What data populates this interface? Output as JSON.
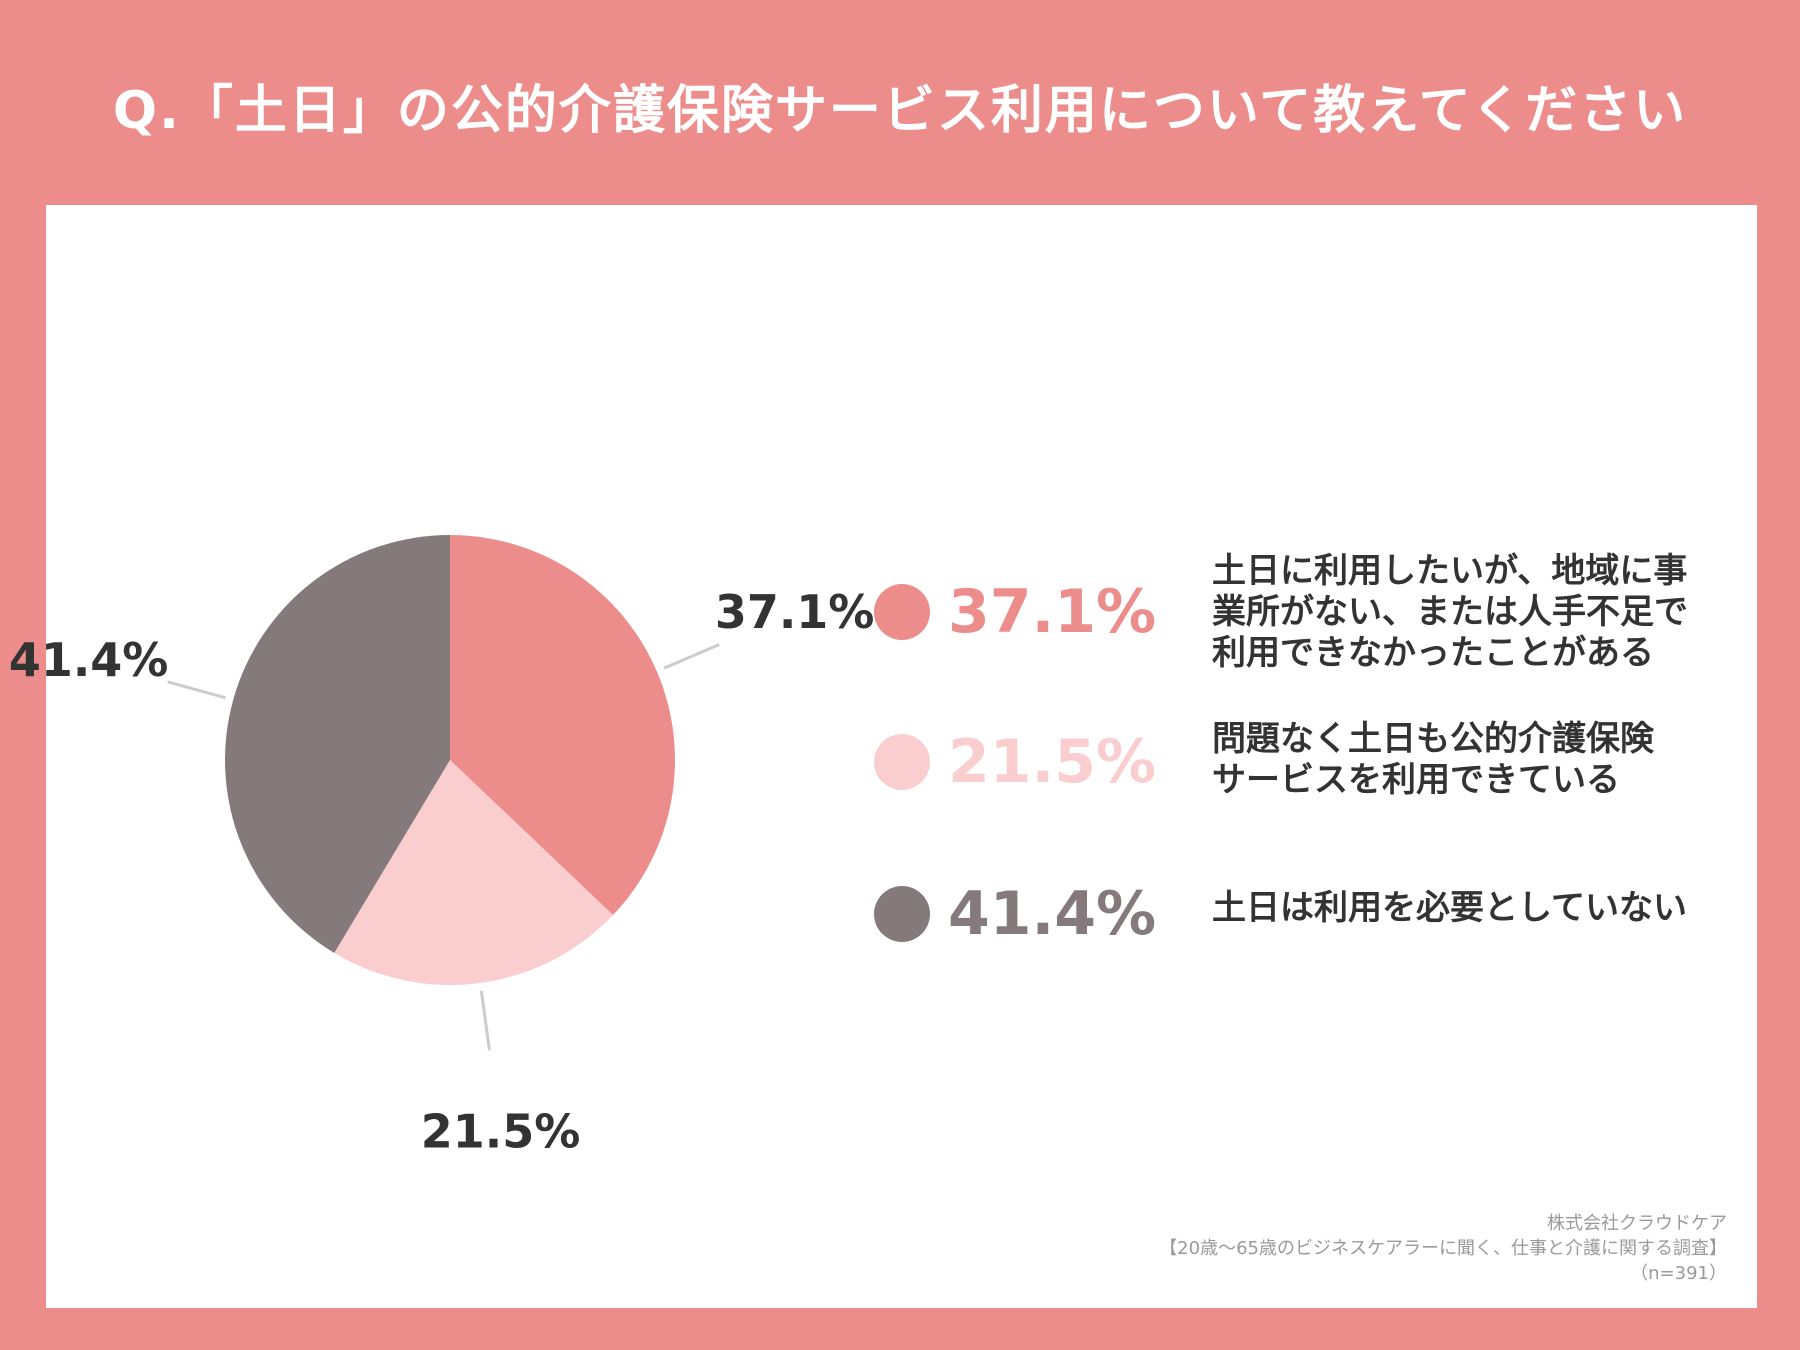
{
  "title": "Q.「土日」の公的介護保険サービス利用について教えてください",
  "chart_data": {
    "type": "pie",
    "slices": [
      {
        "label": "土日に利用したいが、地域に事業所がない、または人手不足で利用できなかったことがある",
        "value": 37.1,
        "display": "37.1%",
        "color": "#EC8D8C"
      },
      {
        "label": "問題なく土日も公的介護保険サービスを利用できている",
        "value": 21.5,
        "display": "21.5%",
        "color": "#FACECE"
      },
      {
        "label": "土日は利用を必要としていない",
        "value": 41.4,
        "display": "41.4%",
        "color": "#857A7B"
      }
    ]
  },
  "legend": [
    {
      "value": "37.1%",
      "lines": [
        "土日に利用したいが、地域に事",
        "業所がない、または人手不足で",
        "利用できなかったことがある"
      ]
    },
    {
      "value": "21.5%",
      "lines": [
        "問題なく土日も公的介護保険",
        "サービスを利用できている"
      ]
    },
    {
      "value": "41.4%",
      "lines": [
        "土日は利用を必要としていない"
      ]
    }
  ],
  "source": {
    "company": "株式会社クラウドケア",
    "survey": "【20歳～65歳のビジネスケアラーに聞く、仕事と介護に関する調査】",
    "sample": "（n=391）"
  }
}
